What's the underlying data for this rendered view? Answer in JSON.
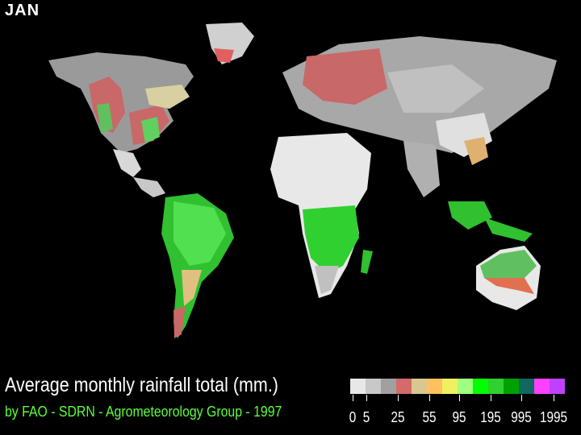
{
  "month": "JAN",
  "title": "Average monthly rainfall total (mm.)",
  "credit": "by FAO - SDRN - Agrometeorology Group - 1997",
  "legend": {
    "colors": [
      "#e8e8e8",
      "#c8c8c8",
      "#a0a0a0",
      "#d46a6a",
      "#d8c890",
      "#ffc060",
      "#f0f060",
      "#a0ff80",
      "#00ff00",
      "#30d030",
      "#00a000",
      "#106860",
      "#ff40ff",
      "#c040ff"
    ],
    "labels": [
      "0",
      "5",
      "25",
      "55",
      "95",
      "195",
      "995",
      "1995"
    ]
  },
  "colors": {
    "background": "#000000",
    "title": "#ffffff",
    "credit": "#5cff3a"
  }
}
